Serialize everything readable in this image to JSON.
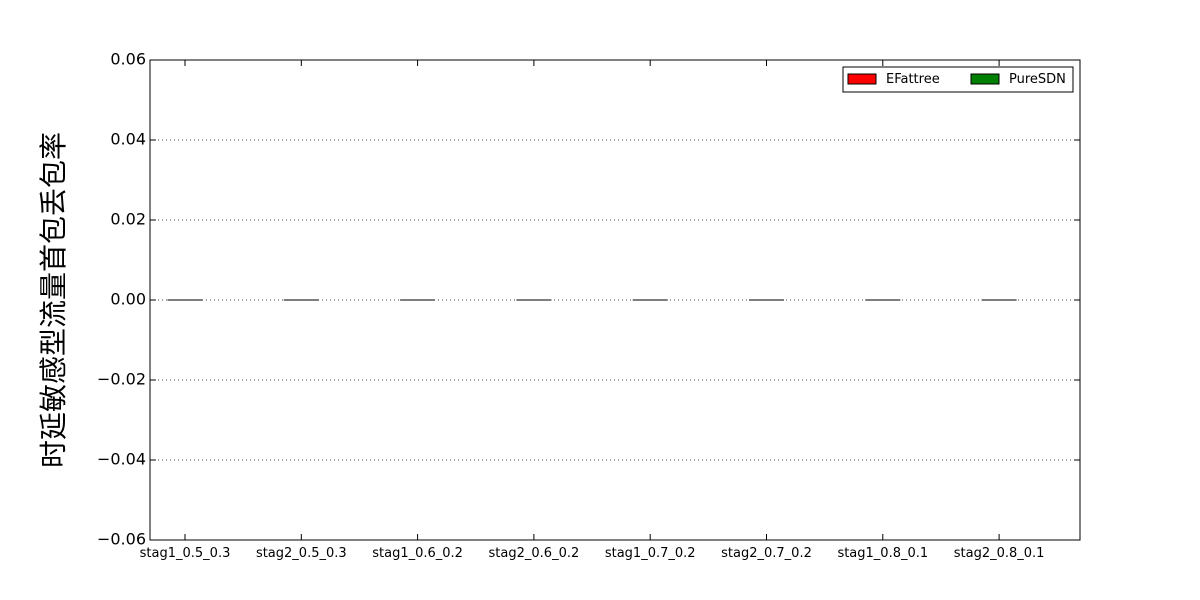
{
  "chart_data": {
    "type": "bar",
    "title": "",
    "xlabel": "",
    "ylabel": "时延敏感型流量首包丢包率",
    "categories": [
      "stag1_0.5_0.3",
      "stag2_0.5_0.3",
      "stag1_0.6_0.2",
      "stag2_0.6_0.2",
      "stag1_0.7_0.2",
      "stag2_0.7_0.2",
      "stag1_0.8_0.1",
      "stag2_0.8_0.1"
    ],
    "series": [
      {
        "name": "EFattree",
        "color": "#ff0000",
        "values": [
          0,
          0,
          0,
          0,
          0,
          0,
          0,
          0
        ]
      },
      {
        "name": "PureSDN",
        "color": "#008000",
        "values": [
          0,
          0,
          0,
          0,
          0,
          0,
          0,
          0
        ]
      }
    ],
    "ylim": [
      -0.06,
      0.06
    ],
    "yticks": [
      0.06,
      0.04,
      0.02,
      0.0,
      -0.02,
      -0.04,
      -0.06
    ],
    "ytick_labels": [
      "0.06",
      "0.04",
      "0.02",
      "0.00",
      "−0.02",
      "−0.04",
      "−0.06"
    ],
    "grid": "horizontal dotted",
    "legend_position": "top-right"
  }
}
